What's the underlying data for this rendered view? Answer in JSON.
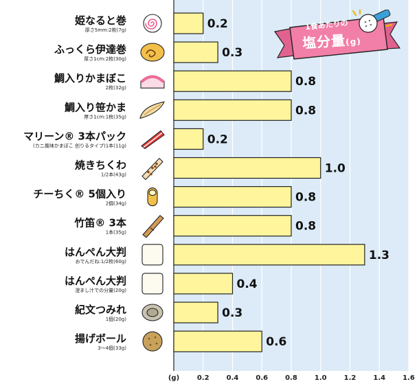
{
  "chart_data": {
    "type": "bar",
    "orientation": "horizontal",
    "title": "1食あたりの塩分量(g)",
    "title_line1": "1食あたりの",
    "title_line2": "塩分量",
    "title_unit": "(g)",
    "axis_unit": "(g)",
    "xlim": [
      0,
      1.6
    ],
    "ticks": [
      "0.2",
      "0.4",
      "0.6",
      "0.8",
      "1.0",
      "1.2",
      "1.4",
      "1.6"
    ],
    "grid": true,
    "colors": {
      "bar": "#fff59d",
      "bar_stroke": "#222222",
      "plot_bg": "#dcebf7",
      "grid": "#ffffff",
      "badge": "#f27fa7"
    },
    "categories": [
      {
        "name": "姫なると巻",
        "sub": "厚さ5mm:2枚(7g)",
        "value": 0.2,
        "label": "0.2",
        "icon": "naruto-icon"
      },
      {
        "name": "ふっくら伊達巻",
        "sub": "厚さ1cm:2枚(30g)",
        "value": 0.3,
        "label": "0.3",
        "icon": "datemaki-icon"
      },
      {
        "name": "鯛入りかまぼこ",
        "sub": "2枚(32g)",
        "value": 0.8,
        "label": "0.8",
        "icon": "kamaboko-icon"
      },
      {
        "name": "鯛入り笹かま",
        "sub": "厚さ1cm:1枚(35g)",
        "value": 0.8,
        "label": "0.8",
        "icon": "sasakama-icon"
      },
      {
        "name": "マリーン® 3本パック",
        "sub": "(カニ風味かまぼこ 创りるタイプ)1本(11g)",
        "value": 0.2,
        "label": "0.2",
        "icon": "crab-stick-icon"
      },
      {
        "name": "焼きちくわ",
        "sub": "1/2本(43g)",
        "value": 1.0,
        "label": "1.0",
        "icon": "chikuwa-icon"
      },
      {
        "name": "チーちく® 5個入り",
        "sub": "2個(34g)",
        "value": 0.8,
        "label": "0.8",
        "icon": "cheese-chikuwa-icon"
      },
      {
        "name": "竹笛® 3本",
        "sub": "1本(35g)",
        "value": 0.8,
        "label": "0.8",
        "icon": "takebue-icon"
      },
      {
        "name": "はんぺん大判",
        "sub": "おでんだね:1/2枚(60g)",
        "value": 1.3,
        "label": "1.3",
        "icon": "hanpen-icon"
      },
      {
        "name": "はんぺん大判",
        "sub": "澄まし汁での分量(20g)",
        "value": 0.4,
        "label": "0.4",
        "icon": "hanpen-small-icon"
      },
      {
        "name": "紀文つみれ",
        "sub": "1個(20g)",
        "value": 0.3,
        "label": "0.3",
        "icon": "tsumire-icon"
      },
      {
        "name": "揚げボール",
        "sub": "3〜4個(33g)",
        "value": 0.6,
        "label": "0.6",
        "icon": "fried-ball-icon"
      }
    ]
  }
}
